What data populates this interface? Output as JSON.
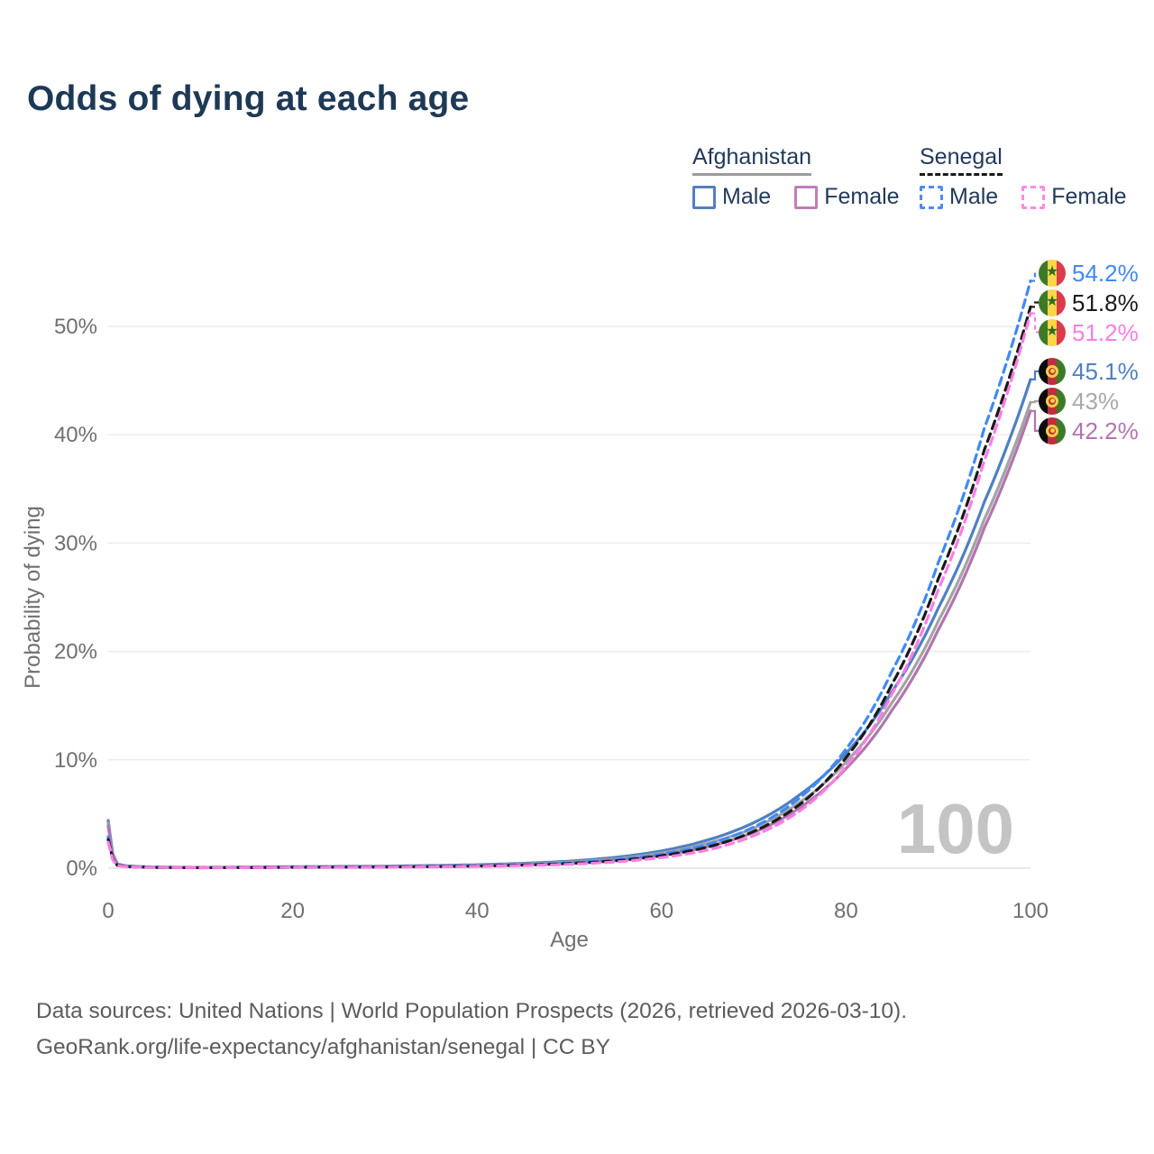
{
  "title": "Odds of dying at each age",
  "watermark": "100",
  "colors": {
    "title_text": "#1d3956",
    "legend_text": "#22395c",
    "axis_text": "#6f6f6f",
    "gridline": "#ececec",
    "baseline": "#e0e0e0",
    "watermark": "#c4c4c4",
    "footer_text": "#5c5c5c"
  },
  "legend": {
    "groups": [
      {
        "label": "Afghanistan",
        "line_style": "solid",
        "underline_color": "#9b9b9b",
        "items": [
          {
            "label": "Male",
            "color": "#5580bd",
            "dashed": false
          },
          {
            "label": "Female",
            "color": "#bd7fb8",
            "dashed": false
          }
        ]
      },
      {
        "label": "Senegal",
        "line_style": "dashed",
        "underline_color": "#1a1a1a",
        "items": [
          {
            "label": "Male",
            "color": "#4b8df2",
            "dashed": true
          },
          {
            "label": "Female",
            "color": "#ff8ae2",
            "dashed": true
          }
        ]
      }
    ]
  },
  "flags": {
    "senegal": {
      "stripes": [
        "#3c7a28",
        "#fdd64a",
        "#da3c4b"
      ],
      "emblem": "star",
      "emblem_color": "#2d6b22"
    },
    "afghanistan": {
      "stripes": [
        "#0c0c0c",
        "#bf2e3e",
        "#3c7a28"
      ],
      "emblem": "ring",
      "emblem_color": "#f6cf45"
    }
  },
  "chart_data": {
    "type": "line",
    "title": "Odds of dying at each age",
    "xlabel": "Age",
    "ylabel": "Probability of dying",
    "x_ticks": [
      0,
      20,
      40,
      60,
      80,
      100
    ],
    "y_ticks": [
      0,
      10,
      20,
      30,
      40,
      50
    ],
    "xlim": [
      0,
      100
    ],
    "ylim_percent": [
      0,
      56
    ],
    "grid": "horizontal",
    "legend_position": "top-right",
    "hovered_age": 100,
    "ages": [
      0,
      1,
      2,
      5,
      10,
      20,
      30,
      40,
      45,
      50,
      55,
      60,
      65,
      70,
      75,
      80,
      85,
      90,
      95,
      100
    ],
    "series": [
      {
        "id": "senegal-male",
        "name": "Senegal Male",
        "country": "Senegal",
        "sex": "Male",
        "color": "#4089f5",
        "label_color": "#4089f5",
        "dashed": true,
        "flag": "senegal",
        "end_label": "54.2%",
        "values": [
          2.9,
          0.28,
          0.16,
          0.08,
          0.05,
          0.09,
          0.12,
          0.22,
          0.32,
          0.49,
          0.78,
          1.3,
          2.2,
          3.8,
          6.5,
          11.0,
          18.2,
          28.2,
          40.6,
          54.2
        ]
      },
      {
        "id": "senegal-both",
        "name": "Senegal (both sexes)",
        "country": "Senegal",
        "sex": "Both",
        "color": "#1a1a1a",
        "label_color": "#1a1a1a",
        "dashed": true,
        "flag": "senegal",
        "end_label": "51.8%",
        "values": [
          2.65,
          0.26,
          0.15,
          0.075,
          0.045,
          0.08,
          0.11,
          0.19,
          0.28,
          0.43,
          0.68,
          1.15,
          1.95,
          3.4,
          5.9,
          10.2,
          17.0,
          26.7,
          38.6,
          51.8
        ]
      },
      {
        "id": "senegal-female",
        "name": "Senegal Female",
        "country": "Senegal",
        "sex": "Female",
        "color": "#ff7ce5",
        "label_color": "#ff7ce5",
        "dashed": true,
        "flag": "senegal",
        "end_label": "51.2%",
        "values": [
          2.4,
          0.24,
          0.14,
          0.07,
          0.04,
          0.07,
          0.09,
          0.16,
          0.24,
          0.36,
          0.58,
          0.98,
          1.68,
          3.0,
          5.3,
          9.4,
          16.1,
          25.7,
          37.6,
          51.2
        ]
      },
      {
        "id": "afghanistan-male",
        "name": "Afghanistan Male",
        "country": "Afghanistan",
        "sex": "Male",
        "color": "#4e80c2",
        "label_color": "#4e80c2",
        "dashed": false,
        "flag": "afghanistan",
        "end_label": "45.1%",
        "values": [
          4.4,
          0.4,
          0.22,
          0.1,
          0.07,
          0.14,
          0.19,
          0.32,
          0.45,
          0.65,
          1.0,
          1.6,
          2.6,
          4.2,
          6.8,
          10.6,
          16.3,
          24.0,
          33.8,
          45.1
        ]
      },
      {
        "id": "afghanistan-both",
        "name": "Afghanistan (both sexes)",
        "country": "Afghanistan",
        "sex": "Both",
        "color": "#a3a3a3",
        "label_color": "#a9a9a9",
        "dashed": false,
        "flag": "afghanistan",
        "end_label": "43%",
        "values": [
          4.15,
          0.37,
          0.2,
          0.09,
          0.06,
          0.12,
          0.16,
          0.27,
          0.38,
          0.55,
          0.85,
          1.4,
          2.3,
          3.7,
          6.1,
          9.8,
          15.3,
          22.8,
          32.2,
          43.0
        ]
      },
      {
        "id": "afghanistan-female",
        "name": "Afghanistan Female",
        "country": "Afghanistan",
        "sex": "Female",
        "color": "#b175af",
        "label_color": "#b175af",
        "dashed": false,
        "flag": "afghanistan",
        "end_label": "42.2%",
        "values": [
          3.9,
          0.34,
          0.19,
          0.085,
          0.055,
          0.1,
          0.14,
          0.23,
          0.32,
          0.47,
          0.73,
          1.2,
          2.0,
          3.3,
          5.6,
          9.2,
          14.6,
          22.0,
          31.4,
          42.2
        ]
      }
    ]
  },
  "footer": {
    "line1": "Data sources: United Nations | World Population Prospects (2026, retrieved 2026-03-10).",
    "line2": "GeoRank.org/life-expectancy/afghanistan/senegal | CC BY"
  }
}
